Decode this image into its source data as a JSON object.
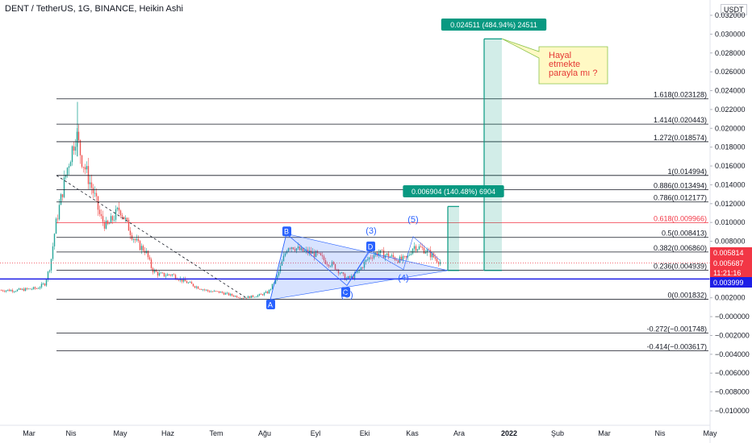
{
  "chart_data": {
    "type": "candlestick",
    "title": "DENT / TetherUS, 1G, BINANCE, Heikin Ashi",
    "unit_label": "USDT",
    "ylim": [
      -0.011,
      0.032
    ],
    "y_ticks": [
      "0.032000",
      "0.030000",
      "0.028000",
      "0.026000",
      "0.024000",
      "0.022000",
      "0.020000",
      "0.018000",
      "0.016000",
      "0.014000",
      "0.012000",
      "0.010000",
      "0.008000",
      "0.006000",
      "0.004000",
      "0.002000",
      "−0.000000",
      "−0.002000",
      "−0.004000",
      "−0.006000",
      "−0.008000",
      "−0.010000"
    ],
    "x_ticks": [
      "Mar",
      "Nis",
      "May",
      "Haz",
      "Tem",
      "Ağu",
      "Eyl",
      "Eki",
      "Kas",
      "Ara",
      "2022",
      "Şub",
      "Mar",
      "Nis",
      "May"
    ],
    "fib_levels": [
      {
        "label": "1.618(0.023128)",
        "value": 0.023128,
        "color": "#131722"
      },
      {
        "label": "1.414(0.020443)",
        "value": 0.020443,
        "color": "#131722"
      },
      {
        "label": "1.272(0.018574)",
        "value": 0.018574,
        "color": "#131722"
      },
      {
        "label": "1(0.014994)",
        "value": 0.014994,
        "color": "#131722"
      },
      {
        "label": "0.886(0.013494)",
        "value": 0.013494,
        "color": "#131722"
      },
      {
        "label": "0.786(0.012177)",
        "value": 0.012177,
        "color": "#131722"
      },
      {
        "label": "0.618(0.009966)",
        "value": 0.009966,
        "color": "#f23645"
      },
      {
        "label": "0.5(0.008413)",
        "value": 0.008413,
        "color": "#131722"
      },
      {
        "label": "0.382(0.006860)",
        "value": 0.00686,
        "color": "#131722"
      },
      {
        "label": "0.236(0.004939)",
        "value": 0.004939,
        "color": "#131722"
      },
      {
        "label": "0(0.001832)",
        "value": 0.001832,
        "color": "#131722"
      },
      {
        "label": "-0.272(−0.001748)",
        "value": -0.001748,
        "color": "#131722"
      },
      {
        "label": "-0.414(−0.003617)",
        "value": -0.003617,
        "color": "#131722"
      }
    ],
    "horizontal_line": {
      "value": 0.003999,
      "color": "#1e1ee6"
    },
    "price_labels": [
      {
        "text": "0.005814",
        "value": 0.005814,
        "bg": "#f23645"
      },
      {
        "text": "0.005687",
        "value": 0.005687,
        "bg": "#f23645"
      },
      {
        "text": "11:21:16",
        "value": 0.00485,
        "bg": "#f23645"
      },
      {
        "text": "0.003999",
        "value": 0.003999,
        "bg": "#1e1ee6"
      }
    ],
    "measure_labels": [
      {
        "text": "0.024511 (484.94%) 24511",
        "bg": "#089981"
      },
      {
        "text": "0.006904 (140.48%) 6904",
        "bg": "#089981"
      }
    ],
    "pattern_points": [
      "A",
      "B",
      "C",
      "D"
    ],
    "wave_labels": [
      "(3)",
      "(4)",
      "(5)",
      "(C)"
    ],
    "callout_text": "Hayal etmekte parayla mı ?",
    "candle_colors": {
      "up": "#26a69a",
      "down": "#ef5350"
    }
  }
}
